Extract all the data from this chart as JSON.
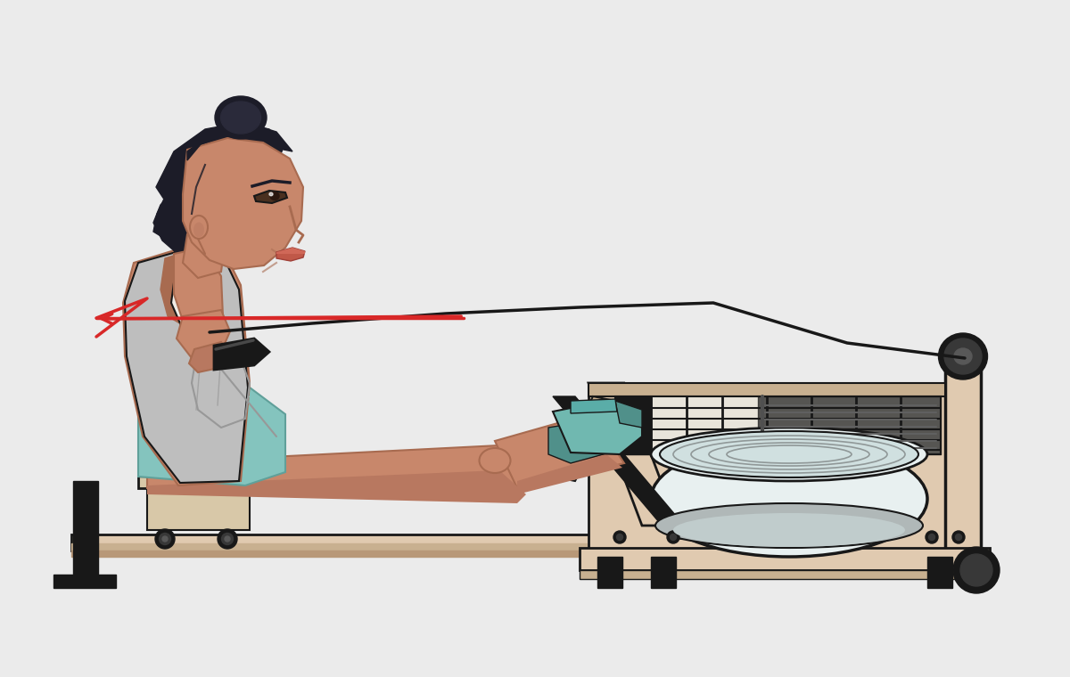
{
  "bg_color": "#ebebeb",
  "skin_color": "#c8876b",
  "skin_shadow": "#a86b50",
  "skin_mid": "#b87860",
  "hair_color": "#1c1c28",
  "hair_mid": "#2a2a3a",
  "shirt_color": "#bebebe",
  "shirt_shadow": "#989898",
  "shirt_light": "#d4d4d4",
  "bra_color": "#f0ece6",
  "shorts_color": "#84c4be",
  "shorts_shadow": "#60a09a",
  "shoe_color": "#70b8b0",
  "shoe_dark": "#50908a",
  "machine_wood": "#e0cab0",
  "machine_wood_dark": "#c8b090",
  "machine_wood_shadow": "#b89878",
  "machine_black": "#181818",
  "machine_dark_gray": "#383838",
  "machine_gray": "#585858",
  "water_light": "#e8f0f0",
  "water_mid": "#d0e0e0",
  "water_dark": "#a8c0c0",
  "water_gray": "#b0b8b8",
  "rope_color": "#181818",
  "arrow_color": "#d82828",
  "seat_wood": "#d8c8a8",
  "seat_dark": "#282018"
}
